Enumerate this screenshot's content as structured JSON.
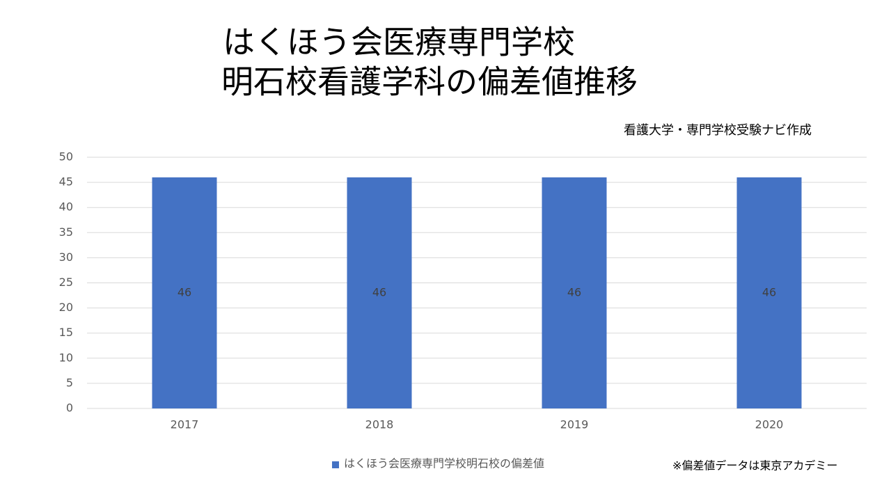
{
  "chart_data": {
    "type": "bar",
    "title": [
      "はくほう会医療専門学校",
      "明石校看護学科の偏差値推移"
    ],
    "subtitle": "看護大学・専門学校受験ナビ作成",
    "note": "※偏差値データは東京アカデミー",
    "categories": [
      "2017",
      "2018",
      "2019",
      "2020"
    ],
    "series": [
      {
        "name": "はくほう会医療専門学校明石校の偏差値",
        "color": "#4472c4",
        "values": [
          46,
          46,
          46,
          46
        ]
      }
    ],
    "ylim": [
      0,
      50
    ],
    "yticks": [
      0,
      5,
      10,
      15,
      20,
      25,
      30,
      35,
      40,
      45,
      50
    ],
    "grid": true,
    "data_labels": true,
    "legend": "bottom"
  }
}
